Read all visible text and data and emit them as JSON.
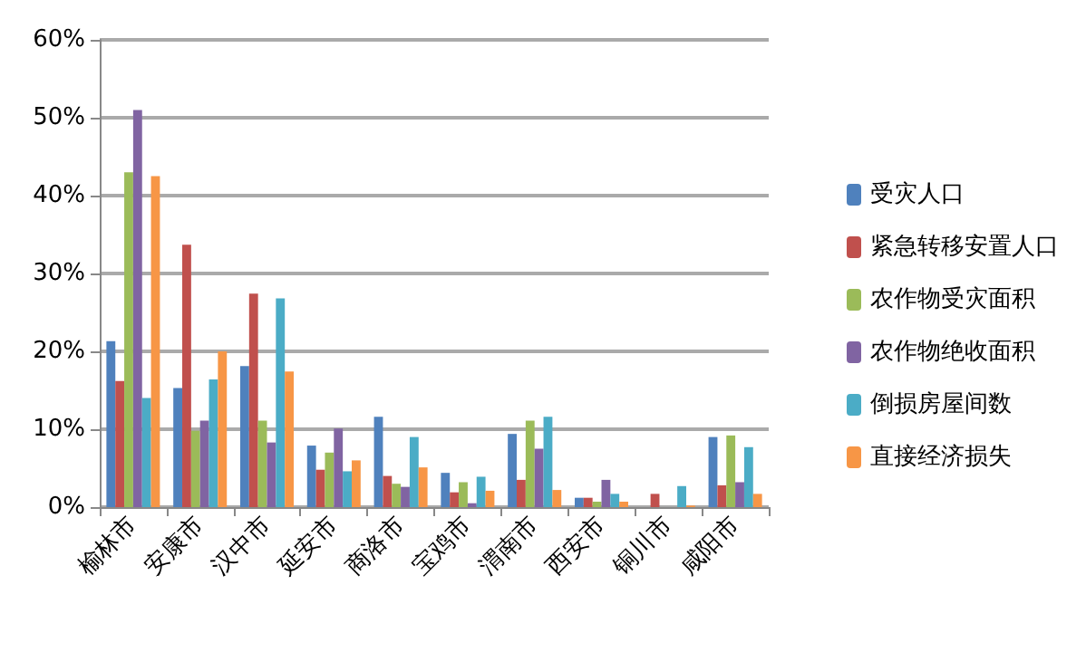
{
  "chart_data": {
    "type": "bar",
    "categories": [
      "榆林市",
      "安康市",
      "汉中市",
      "延安市",
      "商洛市",
      "宝鸡市",
      "渭南市",
      "西安市",
      "铜川市",
      "咸阳市"
    ],
    "series": [
      {
        "name": "受灾人口",
        "color": "#4f81bd",
        "values": [
          21.3,
          15.3,
          18.1,
          7.9,
          11.6,
          4.4,
          9.4,
          1.2,
          null,
          9
        ]
      },
      {
        "name": "紧急转移安置人口",
        "color": "#c0504d",
        "values": [
          16.2,
          33.7,
          27.4,
          4.8,
          4,
          1.9,
          3.5,
          1.2,
          1.7,
          2.8
        ]
      },
      {
        "name": "农作物受灾面积",
        "color": "#9bbb59",
        "values": [
          43,
          9.8,
          11.1,
          7,
          3,
          3.2,
          11.1,
          0.7,
          null,
          9.2
        ]
      },
      {
        "name": "农作物绝收面积",
        "color": "#8064a2",
        "values": [
          51,
          11.1,
          8.3,
          10.1,
          2.6,
          0.5,
          7.5,
          3.5,
          null,
          3.2
        ]
      },
      {
        "name": "倒损房屋间数",
        "color": "#4bacc6",
        "values": [
          14,
          16.4,
          26.8,
          4.6,
          9,
          3.9,
          11.6,
          1.7,
          2.7,
          7.7
        ]
      },
      {
        "name": "直接经济损失",
        "color": "#f79646",
        "values": [
          42.5,
          20,
          17.4,
          6,
          5.1,
          2.1,
          2.2,
          0.7,
          0.2,
          1.7
        ]
      }
    ],
    "ylim": [
      0,
      60
    ],
    "yticks": [
      {
        "value": 0,
        "label": "0%"
      },
      {
        "value": 10,
        "label": "10%"
      },
      {
        "value": 20,
        "label": "20%"
      },
      {
        "value": 30,
        "label": "30%"
      },
      {
        "value": 40,
        "label": "40%"
      },
      {
        "value": 50,
        "label": "50%"
      },
      {
        "value": 60,
        "label": "60%"
      }
    ],
    "grid": "y",
    "legend": "right"
  }
}
